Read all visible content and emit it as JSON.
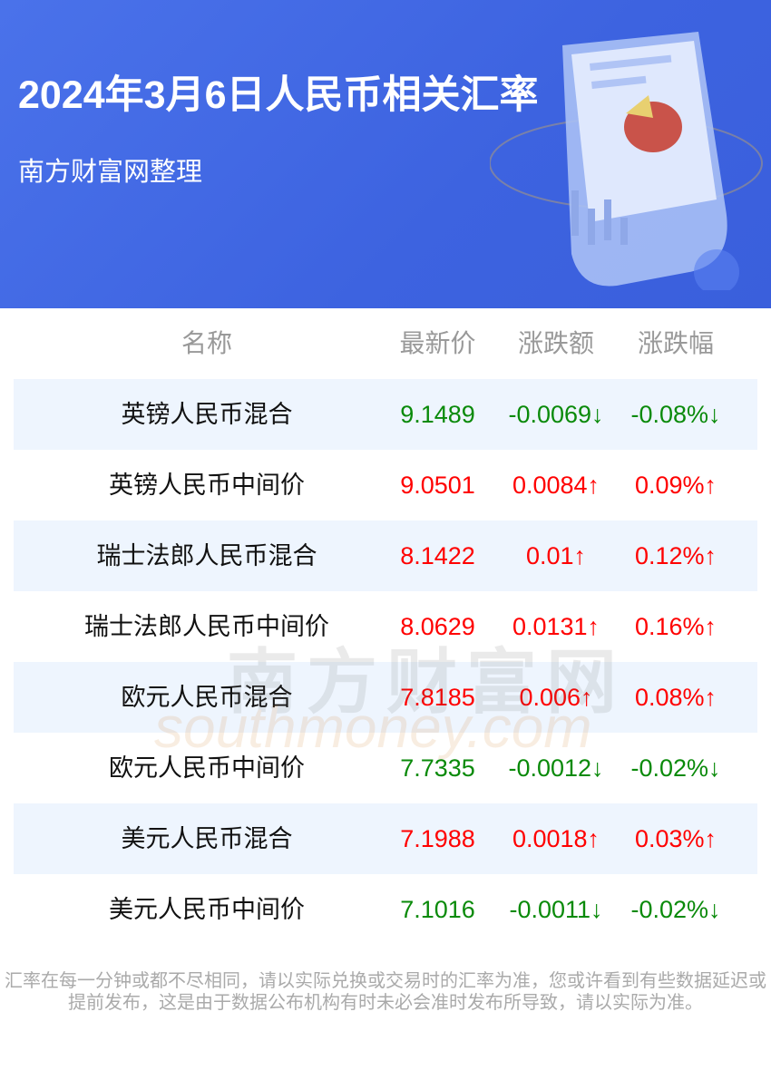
{
  "banner": {
    "title": "2024年3月6日人民币相关汇率",
    "subtitle": "南方财富网整理"
  },
  "table": {
    "headers": [
      "名称",
      "最新价",
      "涨跌额",
      "涨跌幅"
    ],
    "rows": [
      {
        "name": "英镑人民币混合",
        "price": "9.1489",
        "change": "-0.0069↓",
        "pct": "-0.08%↓",
        "dir": "down"
      },
      {
        "name": "英镑人民币中间价",
        "price": "9.0501",
        "change": "0.0084↑",
        "pct": "0.09%↑",
        "dir": "up"
      },
      {
        "name": "瑞士法郎人民币混合",
        "price": "8.1422",
        "change": "0.01↑",
        "pct": "0.12%↑",
        "dir": "up"
      },
      {
        "name": "瑞士法郎人民币中间价",
        "price": "8.0629",
        "change": "0.0131↑",
        "pct": "0.16%↑",
        "dir": "up"
      },
      {
        "name": "欧元人民币混合",
        "price": "7.8185",
        "change": "0.006↑",
        "pct": "0.08%↑",
        "dir": "up"
      },
      {
        "name": "欧元人民币中间价",
        "price": "7.7335",
        "change": "-0.0012↓",
        "pct": "-0.02%↓",
        "dir": "down"
      },
      {
        "name": "美元人民币混合",
        "price": "7.1988",
        "change": "0.0018↑",
        "pct": "0.03%↑",
        "dir": "up"
      },
      {
        "name": "美元人民币中间价",
        "price": "7.1016",
        "change": "-0.0011↓",
        "pct": "-0.02%↓",
        "dir": "down"
      }
    ]
  },
  "watermark": {
    "cn": "南方财富网",
    "en": "southmoney.com"
  },
  "footer": {
    "disclaimer": "汇率在每一分钟或都不尽相同，请以实际兑换或交易时的汇率为准，您或许看到有些数据延迟或提前发布，这是由于数据公布机构有时未必会准时发布所导致，请以实际为准。"
  },
  "colors": {
    "banner": "#3d63e0",
    "up": "#ff0000",
    "down": "#0a8a0a",
    "row_alt": "#eef5fe"
  },
  "icons": {
    "decoration": "report-document-pie-chart-illustration"
  }
}
